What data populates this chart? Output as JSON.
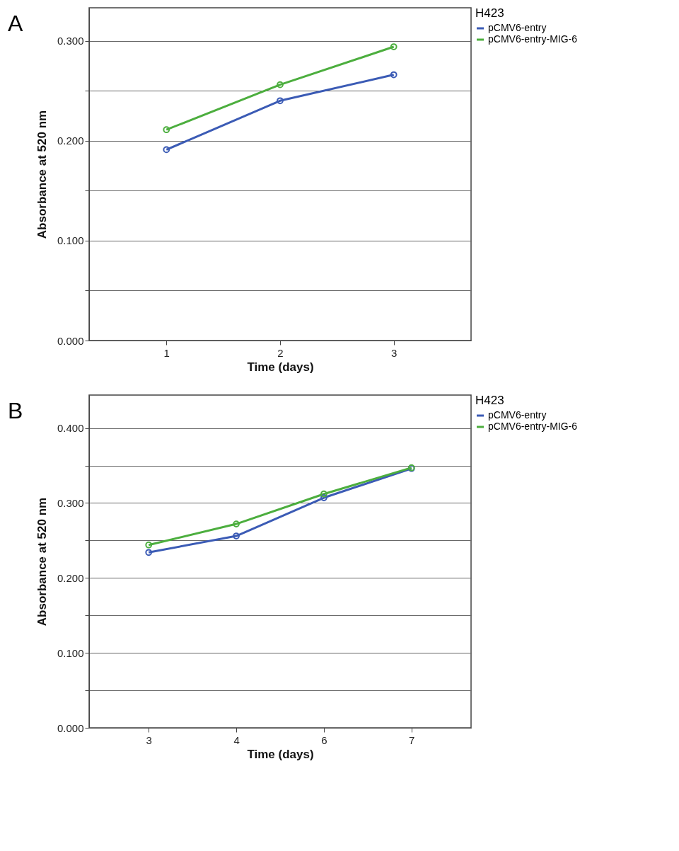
{
  "chart_data": [
    {
      "type": "line",
      "title": "A",
      "xlabel": "Time (days)",
      "ylabel": "Absorbance at 520 nm",
      "legend_title": "H423",
      "categories": [
        "1",
        "2",
        "3"
      ],
      "series": [
        {
          "name": "pCMV6-entry",
          "color": "#3b5bb5",
          "values": [
            0.191,
            0.24,
            0.266
          ]
        },
        {
          "name": "pCMV6-entry-MIG-6",
          "color": "#4cae3e",
          "values": [
            0.211,
            0.256,
            0.294
          ]
        }
      ],
      "ylim": [
        0,
        0.333
      ],
      "yticks": [
        {
          "value": 0,
          "label": "0.000"
        },
        {
          "value": 0.05,
          "label": null
        },
        {
          "value": 0.1,
          "label": "0.100"
        },
        {
          "value": 0.15,
          "label": null
        },
        {
          "value": 0.2,
          "label": "0.200"
        },
        {
          "value": 0.25,
          "label": null
        },
        {
          "value": 0.3,
          "label": "0.300"
        }
      ],
      "grid": "y",
      "legend": "top right",
      "marker": "circle",
      "line_style": "solid"
    },
    {
      "type": "line",
      "title": "B",
      "xlabel": "Time (days)",
      "ylabel": "Absorbance at 520 nm",
      "legend_title": "H423",
      "categories": [
        "3",
        "4",
        "6",
        "7"
      ],
      "series": [
        {
          "name": "pCMV6-entry",
          "color": "#3b5bb5",
          "values": [
            0.234,
            0.256,
            0.307,
            0.346
          ]
        },
        {
          "name": "pCMV6-entry-MIG-6",
          "color": "#4cae3e",
          "values": [
            0.244,
            0.272,
            0.312,
            0.347
          ]
        }
      ],
      "ylim": [
        0,
        0.444
      ],
      "yticks": [
        {
          "value": 0,
          "label": "0.000"
        },
        {
          "value": 0.05,
          "label": null
        },
        {
          "value": 0.1,
          "label": "0.100"
        },
        {
          "value": 0.15,
          "label": null
        },
        {
          "value": 0.2,
          "label": "0.200"
        },
        {
          "value": 0.25,
          "label": null
        },
        {
          "value": 0.3,
          "label": "0.300"
        },
        {
          "value": 0.35,
          "label": null
        },
        {
          "value": 0.4,
          "label": "0.400"
        }
      ],
      "grid": "y",
      "legend": "top right",
      "marker": "circle",
      "line_style": "solid"
    }
  ]
}
